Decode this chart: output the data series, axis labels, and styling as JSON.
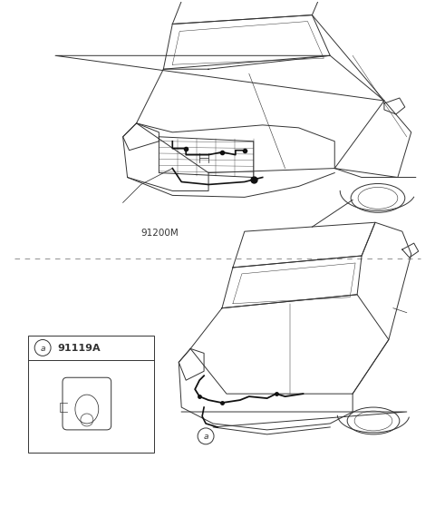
{
  "bg_color": "#ffffff",
  "fig_width": 4.8,
  "fig_height": 5.7,
  "dpi": 100,
  "line_color": "#333333",
  "line_color_dark": "#111111",
  "wire_color": "#111111",
  "divider_color": "#999999",
  "top_label": "91200M",
  "bottom_part_label": "91119A",
  "label_fontsize": 7.5,
  "callout_fontsize": 6.5
}
